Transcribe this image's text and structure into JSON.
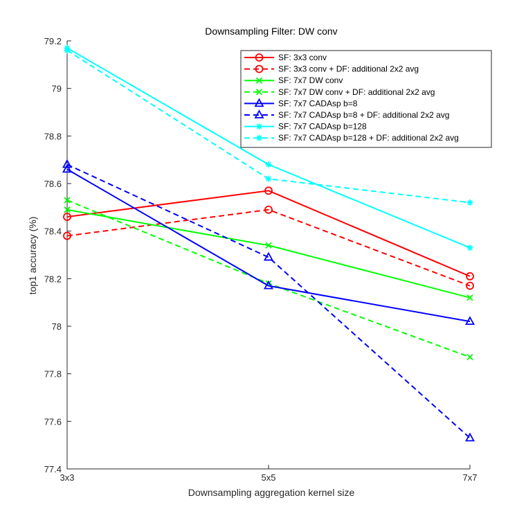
{
  "chart_data": {
    "type": "line",
    "title": "Downsampling Filter: DW conv",
    "xlabel": "Downsampling aggregation kernel size",
    "ylabel": "top1 accuracy (%)",
    "categories": [
      "3x3",
      "5x5",
      "7x7"
    ],
    "ylim": [
      77.4,
      79.2
    ],
    "yticks": [
      "77.4",
      "77.6",
      "77.8",
      "78",
      "78.2",
      "78.4",
      "78.6",
      "78.8",
      "79",
      "79.2"
    ],
    "grid": false,
    "legend_position": "top-right",
    "series": [
      {
        "name": "SF: 3x3 conv",
        "values": [
          78.46,
          78.57,
          78.21
        ],
        "color": "#ff0000",
        "dash": "solid",
        "marker": "circle"
      },
      {
        "name": "SF: 3x3 conv + DF: additional 2x2 avg",
        "values": [
          78.38,
          78.49,
          78.17
        ],
        "color": "#ff0000",
        "dash": "dashed",
        "marker": "circle"
      },
      {
        "name": "SF: 7x7 DW conv",
        "values": [
          78.49,
          78.34,
          78.12
        ],
        "color": "#00ff00",
        "dash": "solid",
        "marker": "x"
      },
      {
        "name": "SF: 7x7 DW conv + DF: additional 2x2 avg",
        "values": [
          78.53,
          78.18,
          77.87
        ],
        "color": "#00ff00",
        "dash": "dashed",
        "marker": "x"
      },
      {
        "name": "SF: 7x7 CADAsp b=8",
        "values": [
          78.66,
          78.17,
          78.02
        ],
        "color": "#0000ff",
        "dash": "solid",
        "marker": "triangle"
      },
      {
        "name": "SF: 7x7 CADAsp b=8 + DF: additional 2x2 avg",
        "values": [
          78.68,
          78.29,
          77.53
        ],
        "color": "#0000ff",
        "dash": "dashed",
        "marker": "triangle"
      },
      {
        "name": "SF: 7x7 CADAsp b=128",
        "values": [
          79.17,
          78.68,
          78.33
        ],
        "color": "#00ffff",
        "dash": "solid",
        "marker": "star"
      },
      {
        "name": "SF: 7x7 CADAsp b=128 + DF: additional 2x2 avg",
        "values": [
          79.16,
          78.62,
          78.52
        ],
        "color": "#00ffff",
        "dash": "dashed",
        "marker": "star"
      }
    ]
  }
}
